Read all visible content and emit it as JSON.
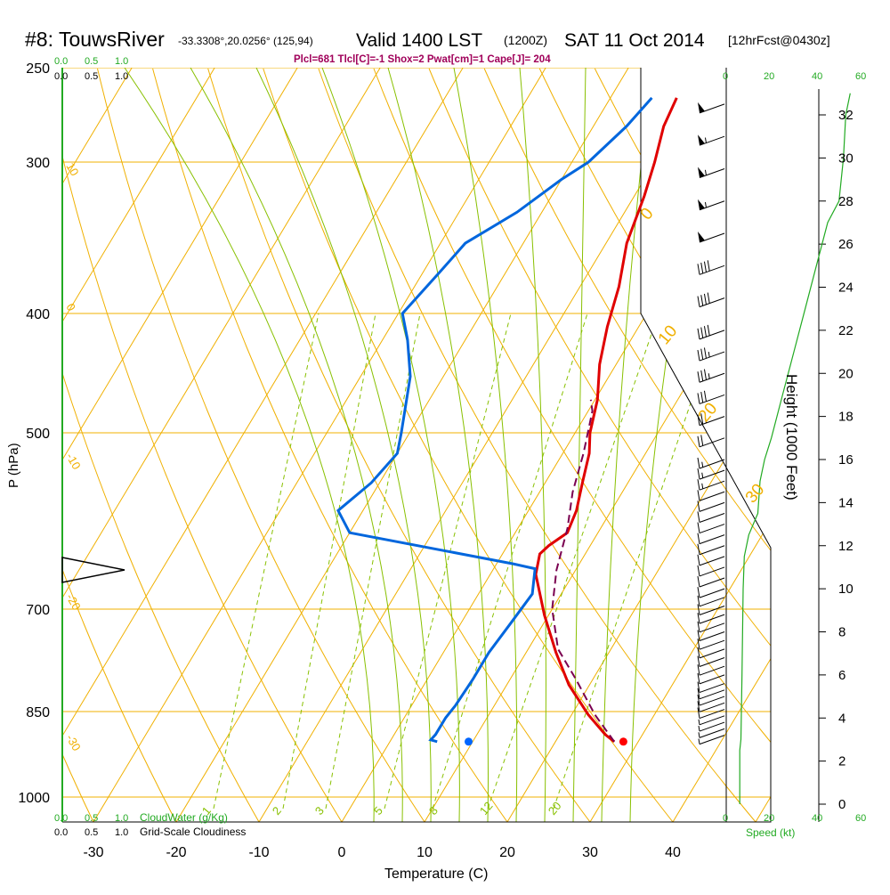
{
  "header": {
    "station": "#8: TouwsRiver",
    "coords": "-33.3308°,20.0256° (125,94)",
    "valid": "Valid 1400 LST",
    "zulu": "(1200Z)",
    "date": "SAT 11 Oct 2014",
    "forecast": "[12hrFcst@0430z]",
    "indices": "Plcl=681 Tlcl[C]=-1 Shox=2 Pwat[cm]=1 Cape[J]= 204"
  },
  "legends": {
    "cloudwater_label": "CloudWater (g/Kg)",
    "cloudiness_label": "Grid-Scale Cloudiness",
    "cloudwater_ticks": [
      "0.0",
      "0.5",
      "1.0"
    ],
    "cloudiness_ticks": [
      "0.0",
      "0.5",
      "1.0"
    ],
    "speed_label": "Speed (kt)",
    "speed_ticks": [
      "0",
      "20",
      "40",
      "60"
    ]
  },
  "chart_data": {
    "type": "line",
    "title": "#8: TouwsRiver",
    "xlabel": "Temperature (C)",
    "ylabel": "P (hPa)",
    "y2label": "Height (1000 Feet)",
    "x_ticks": [
      -30,
      -20,
      -10,
      0,
      10,
      20,
      30,
      40
    ],
    "pressure_ticks": [
      250,
      300,
      400,
      500,
      700,
      850,
      1000
    ],
    "height_ticks": [
      0,
      2,
      4,
      6,
      8,
      10,
      12,
      14,
      16,
      18,
      20,
      22,
      24,
      26,
      28,
      30,
      32
    ],
    "isotherm_labels": [
      "10",
      "0",
      "-10",
      "-20",
      "-30"
    ],
    "adiabat_labels": [
      "0",
      "10",
      "20",
      "30"
    ],
    "mixing_ratio_labels": [
      "1",
      "2",
      "3",
      "5",
      "8",
      "12",
      "20"
    ],
    "series": [
      {
        "name": "Temperature",
        "color": "#e00000",
        "points": [
          [
            27.1,
            900
          ],
          [
            25.5,
            888
          ],
          [
            22.0,
            855
          ],
          [
            17.5,
            808
          ],
          [
            13.6,
            760
          ],
          [
            9.5,
            708
          ],
          [
            5.5,
            655
          ],
          [
            4.5,
            630
          ],
          [
            5.0,
            620
          ],
          [
            6.3,
            605
          ],
          [
            5.8,
            580
          ],
          [
            4.5,
            550
          ],
          [
            3.2,
            520
          ],
          [
            1.8,
            500
          ],
          [
            0.3,
            470
          ],
          [
            -2.0,
            440
          ],
          [
            -3.8,
            410
          ],
          [
            -5.3,
            380
          ],
          [
            -7.5,
            350
          ],
          [
            -8.8,
            320
          ],
          [
            -10.0,
            300
          ],
          [
            -11.5,
            280
          ],
          [
            -12.0,
            265
          ]
        ]
      },
      {
        "name": "Dewpoint",
        "color": "#0066dd",
        "points": [
          [
            5.7,
            900
          ],
          [
            4.8,
            897
          ],
          [
            5.0,
            888
          ],
          [
            5.0,
            860
          ],
          [
            5.3,
            840
          ],
          [
            5.5,
            800
          ],
          [
            5.5,
            760
          ],
          [
            6.0,
            720
          ],
          [
            6.5,
            680
          ],
          [
            5.0,
            648
          ],
          [
            2.0,
            642
          ],
          [
            -20.0,
            605
          ],
          [
            -23.0,
            580
          ],
          [
            -21.0,
            550
          ],
          [
            -20.0,
            520
          ],
          [
            -21.0,
            500
          ],
          [
            -24.0,
            450
          ],
          [
            -27.0,
            420
          ],
          [
            -29.5,
            400
          ],
          [
            -28.0,
            370
          ],
          [
            -27.0,
            350
          ],
          [
            -23.0,
            330
          ],
          [
            -20.0,
            310
          ],
          [
            -18.0,
            300
          ],
          [
            -16.0,
            280
          ],
          [
            -15.0,
            265
          ]
        ]
      },
      {
        "name": "Parcel",
        "color": "#7a0050",
        "points": [
          [
            27.1,
            900
          ],
          [
            22.8,
            855
          ],
          [
            18.0,
            800
          ],
          [
            13.6,
            755
          ],
          [
            10.0,
            700
          ],
          [
            7.7,
            650
          ],
          [
            6.0,
            600
          ],
          [
            4.0,
            560
          ],
          [
            2.5,
            520
          ],
          [
            0.5,
            480
          ],
          [
            -0.5,
            470
          ]
        ]
      }
    ],
    "surface_temperature_marker": 28.2,
    "surface_dewpoint_marker": 9.5,
    "height_line_kt": [
      [
        6,
        0
      ],
      [
        6,
        2.5
      ],
      [
        6.5,
        3
      ],
      [
        7,
        6
      ],
      [
        7.5,
        10
      ],
      [
        8,
        11.5
      ],
      [
        10,
        12.5
      ],
      [
        14,
        13.5
      ],
      [
        15,
        15
      ],
      [
        17,
        16
      ],
      [
        20,
        17
      ],
      [
        25,
        19
      ],
      [
        30,
        21
      ],
      [
        35,
        23
      ],
      [
        40,
        25
      ],
      [
        45,
        27
      ],
      [
        50,
        28
      ],
      [
        52,
        30
      ],
      [
        53,
        32
      ],
      [
        55,
        33
      ]
    ],
    "wind_barbs": {
      "levels_kft": [
        3.2,
        3.5,
        3.8,
        4.1,
        4.4,
        4.7,
        5.0,
        5.3,
        5.6,
        6.0,
        6.4,
        6.8,
        7.2,
        7.6,
        8.0,
        8.4,
        8.8,
        9.2,
        9.6,
        10.0,
        10.5,
        11.0,
        11.5,
        12.0,
        12.5,
        13.0,
        13.5,
        14.0,
        14.5,
        15.0,
        15.5,
        16.0,
        17.0,
        18.0,
        19.0,
        20.0,
        21.0,
        22.0,
        23.5,
        25.0,
        26.5,
        28.0,
        29.5,
        31.0,
        32.5
      ],
      "speed_kt": [
        5,
        5,
        5,
        5,
        10,
        10,
        10,
        10,
        10,
        10,
        10,
        10,
        10,
        10,
        10,
        10,
        10,
        10,
        10,
        10,
        10,
        10,
        10,
        10,
        10,
        10,
        10,
        10,
        10,
        15,
        15,
        15,
        20,
        25,
        30,
        35,
        35,
        40,
        40,
        40,
        50,
        55,
        55,
        55,
        50
      ]
    },
    "grid": true,
    "legend": "none"
  }
}
